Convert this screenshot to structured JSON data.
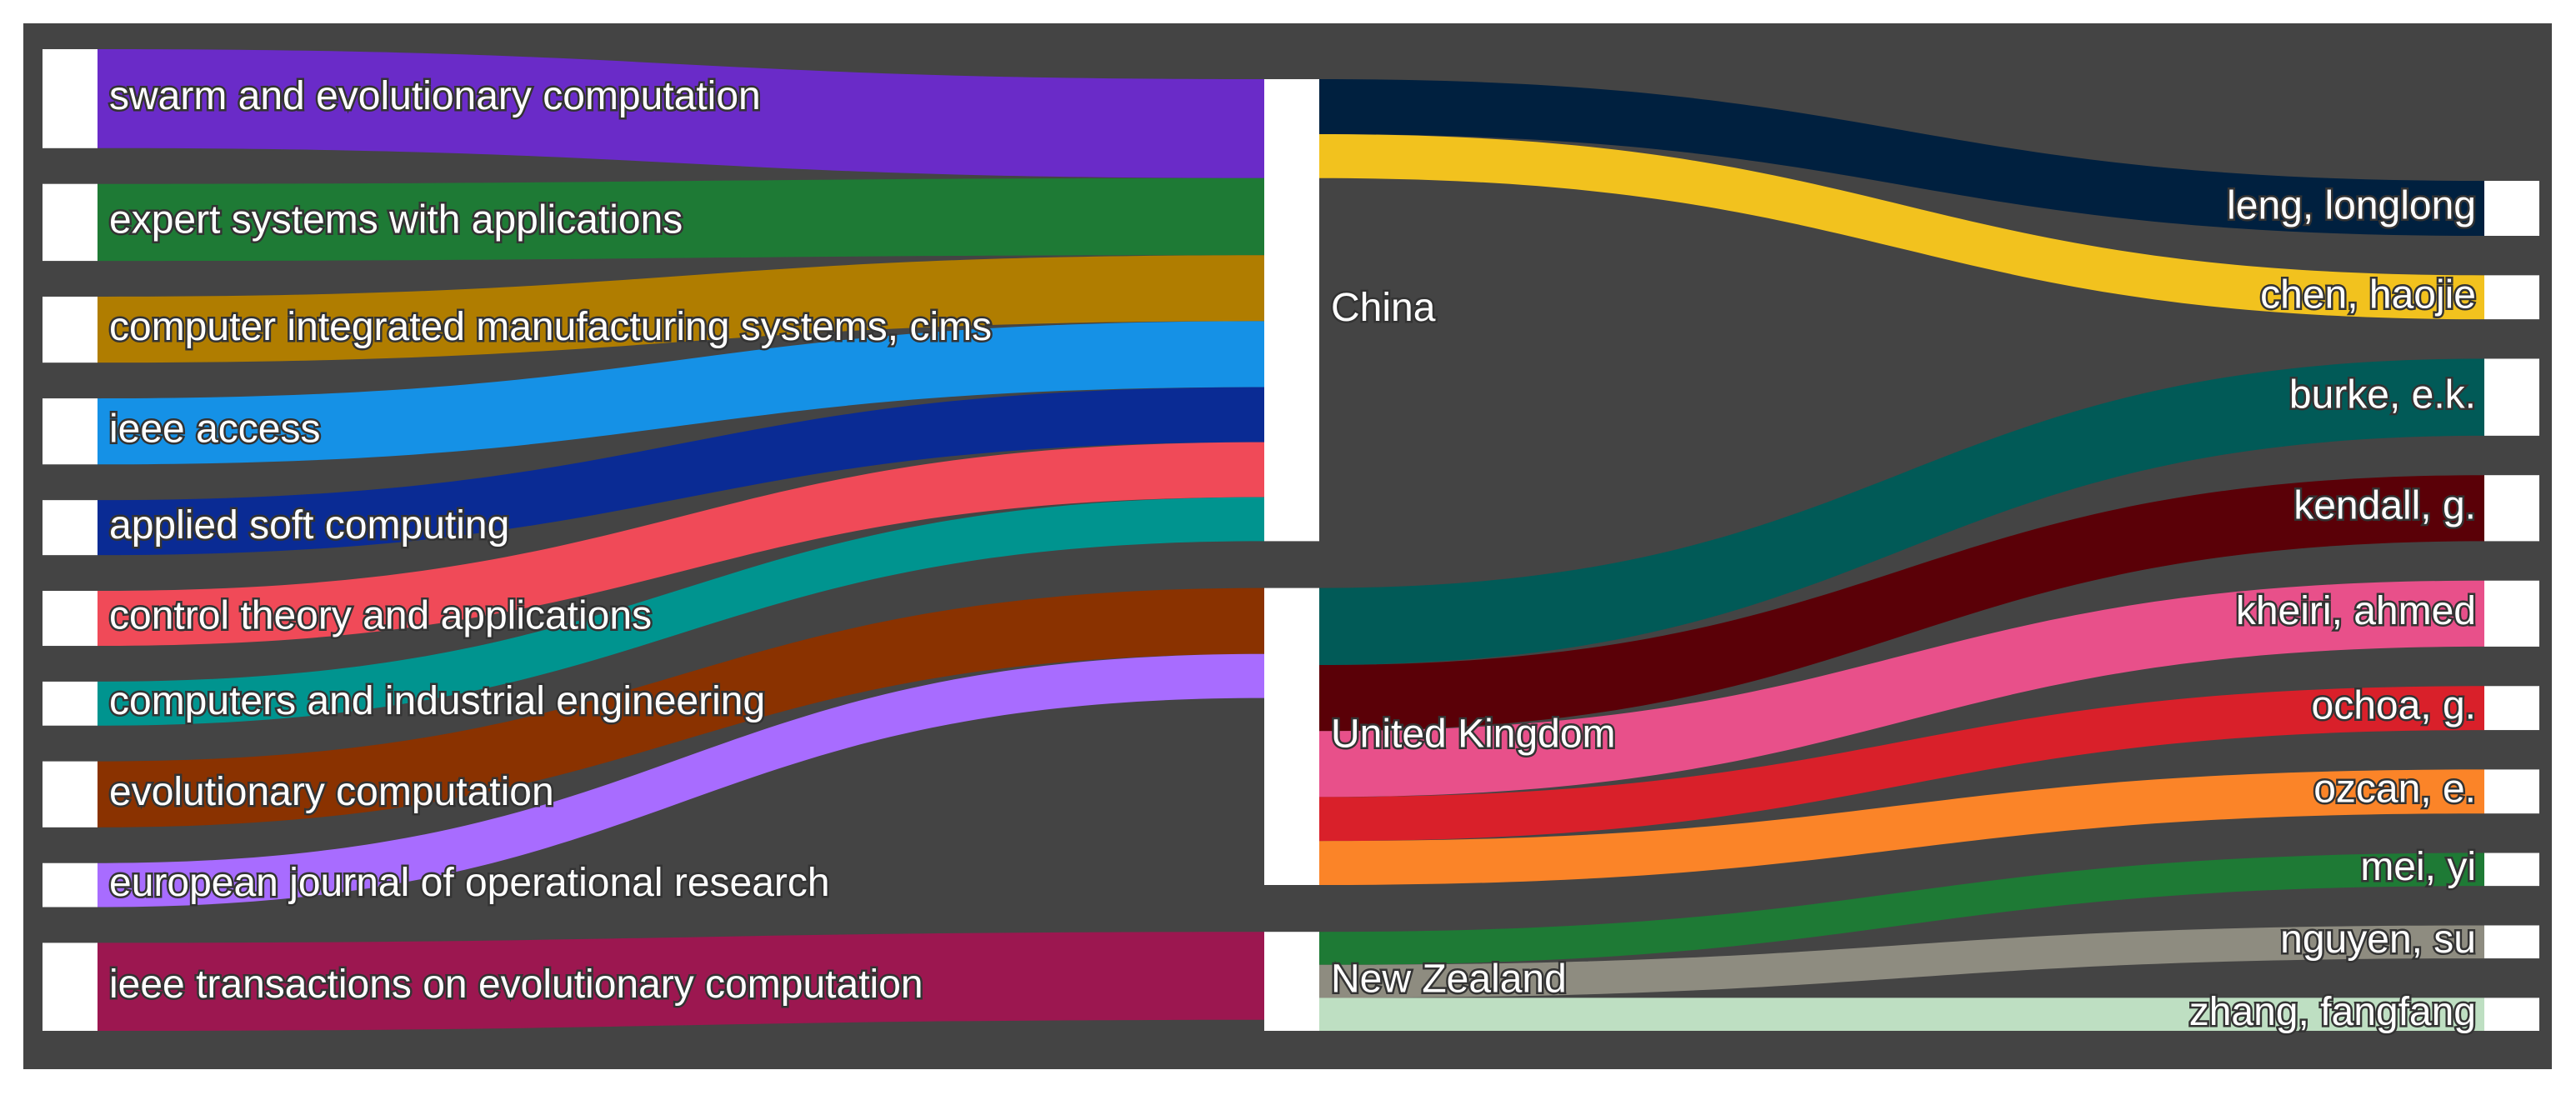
{
  "chart_data": {
    "type": "sankey",
    "nodes": [
      "swarm and evolutionary computation",
      "expert systems with applications",
      "computer integrated manufacturing systems, cims",
      "ieee access",
      "applied soft computing",
      "control theory and applications",
      "computers and industrial engineering",
      "evolutionary computation",
      "european journal of operational research",
      "ieee transactions on evolutionary computation",
      "China",
      "United Kingdom",
      "New Zealand",
      "leng, longlong",
      "chen, haojie",
      "burke, e.k.",
      "kendall, g.",
      "kheiri, ahmed",
      "ochoa, g.",
      "ozcan, e.",
      "mei, yi",
      "nguyen, su",
      "zhang, fangfang"
    ],
    "links": [
      {
        "source": "swarm and evolutionary computation",
        "target": "China",
        "value": 9,
        "color": "#6a2bc8"
      },
      {
        "source": "expert systems with applications",
        "target": "China",
        "value": 7,
        "color": "#1e7a35"
      },
      {
        "source": "computer integrated manufacturing systems, cims",
        "target": "China",
        "value": 6,
        "color": "#b07d00"
      },
      {
        "source": "ieee access",
        "target": "China",
        "value": 6,
        "color": "#1591e6"
      },
      {
        "source": "applied soft computing",
        "target": "China",
        "value": 5,
        "color": "#0a2b94"
      },
      {
        "source": "control theory and applications",
        "target": "China",
        "value": 5,
        "color": "#f04a58"
      },
      {
        "source": "computers and industrial engineering",
        "target": "China",
        "value": 4,
        "color": "#00948f"
      },
      {
        "source": "evolutionary computation",
        "target": "United Kingdom",
        "value": 6,
        "color": "#8a3200"
      },
      {
        "source": "european journal of operational research",
        "target": "United Kingdom",
        "value": 4,
        "color": "#a86cff"
      },
      {
        "source": "ieee transactions on evolutionary computation",
        "target": "New Zealand",
        "value": 8,
        "color": "#9c1750"
      },
      {
        "source": "China",
        "target": "leng, longlong",
        "value": 5,
        "color": "#00203f"
      },
      {
        "source": "China",
        "target": "chen, haojie",
        "value": 4,
        "color": "#f2c21e"
      },
      {
        "source": "United Kingdom",
        "target": "burke, e.k.",
        "value": 7,
        "color": "#015a57"
      },
      {
        "source": "United Kingdom",
        "target": "kendall, g.",
        "value": 6,
        "color": "#5a0007"
      },
      {
        "source": "United Kingdom",
        "target": "kheiri, ahmed",
        "value": 6,
        "color": "#e8508a"
      },
      {
        "source": "United Kingdom",
        "target": "ochoa, g.",
        "value": 4,
        "color": "#d9202a"
      },
      {
        "source": "United Kingdom",
        "target": "ozcan, e.",
        "value": 4,
        "color": "#fb8428"
      },
      {
        "source": "New Zealand",
        "target": "mei, yi",
        "value": 3,
        "color": "#1e7a35"
      },
      {
        "source": "New Zealand",
        "target": "nguyen, su",
        "value": 3,
        "color": "#8e8c80"
      },
      {
        "source": "New Zealand",
        "target": "zhang, fangfang",
        "value": 3,
        "color": "#bedfc2"
      }
    ]
  }
}
